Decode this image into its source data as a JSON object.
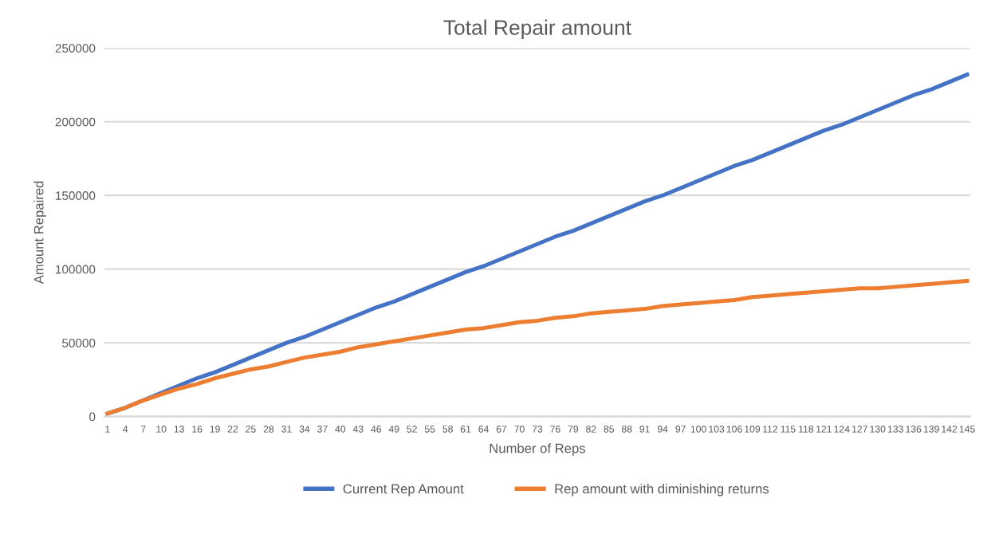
{
  "chart_data": {
    "type": "line",
    "title": "Total Repair amount",
    "xlabel": "Number of Reps",
    "ylabel": "Amount Repaired",
    "xlim": [
      0.5,
      145.5
    ],
    "xticks": [
      1,
      4,
      7,
      10,
      13,
      16,
      19,
      22,
      25,
      28,
      31,
      34,
      37,
      40,
      43,
      46,
      49,
      52,
      55,
      58,
      61,
      64,
      67,
      70,
      73,
      76,
      79,
      82,
      85,
      88,
      91,
      94,
      97,
      100,
      103,
      106,
      109,
      112,
      115,
      118,
      121,
      124,
      127,
      130,
      133,
      136,
      139,
      142,
      145
    ],
    "ylim": [
      0,
      250000
    ],
    "yticks": [
      0,
      50000,
      100000,
      150000,
      200000,
      250000
    ],
    "grid": "y",
    "legend": "bottom",
    "marker": "none",
    "line_style": "solid",
    "series": [
      {
        "name": "Current Rep Amount",
        "color": "#4472c4",
        "x": [
          1,
          4,
          7,
          10,
          13,
          16,
          19,
          22,
          25,
          28,
          31,
          34,
          37,
          40,
          43,
          46,
          49,
          52,
          55,
          58,
          61,
          64,
          67,
          70,
          73,
          76,
          79,
          82,
          85,
          88,
          91,
          94,
          97,
          100,
          103,
          106,
          109,
          112,
          115,
          118,
          121,
          124,
          127,
          130,
          133,
          136,
          139,
          142,
          145
        ],
        "values": [
          2000,
          6000,
          11000,
          16000,
          21000,
          26000,
          30000,
          35000,
          40000,
          45000,
          50000,
          54000,
          59000,
          64000,
          69000,
          74000,
          78000,
          83000,
          88000,
          93000,
          98000,
          102000,
          107000,
          112000,
          117000,
          122000,
          126000,
          131000,
          136000,
          141000,
          146000,
          150000,
          155000,
          160000,
          165000,
          170000,
          174000,
          179000,
          184000,
          189000,
          194000,
          198000,
          203000,
          208000,
          213000,
          218000,
          222000,
          227000,
          232000
        ]
      },
      {
        "name": "Rep amount with diminishing returns",
        "color": "#ed7d31",
        "x": [
          1,
          4,
          7,
          10,
          13,
          16,
          19,
          22,
          25,
          28,
          31,
          34,
          37,
          40,
          43,
          46,
          49,
          52,
          55,
          58,
          61,
          64,
          67,
          70,
          73,
          76,
          79,
          82,
          85,
          88,
          91,
          94,
          97,
          100,
          103,
          106,
          109,
          112,
          115,
          118,
          121,
          124,
          127,
          130,
          133,
          136,
          139,
          142,
          145
        ],
        "values": [
          2000,
          6000,
          11000,
          15000,
          19000,
          22000,
          26000,
          29000,
          32000,
          34000,
          37000,
          40000,
          42000,
          44000,
          47000,
          49000,
          51000,
          53000,
          55000,
          57000,
          59000,
          60000,
          62000,
          64000,
          65000,
          67000,
          68000,
          70000,
          71000,
          72000,
          73000,
          75000,
          76000,
          77000,
          78000,
          79000,
          81000,
          82000,
          83000,
          84000,
          85000,
          86000,
          87000,
          87000,
          88000,
          89000,
          90000,
          91000,
          92000
        ]
      }
    ]
  }
}
